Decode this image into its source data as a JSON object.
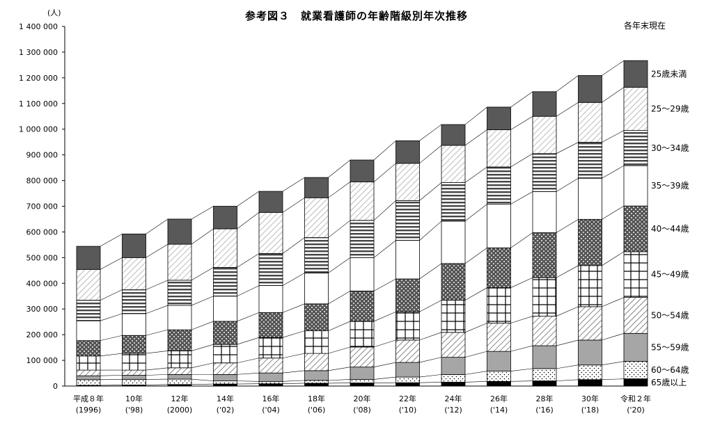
{
  "chart_data": {
    "type": "bar",
    "stacked": true,
    "title": "参考図３　就業看護師の年齢階級別年次推移",
    "note": "各年末現在",
    "ylabel": "(人)",
    "ylim": [
      0,
      1400000
    ],
    "yticks": [
      "0",
      "100 000",
      "200 000",
      "300 000",
      "400 000",
      "500 000",
      "600 000",
      "700 000",
      "800 000",
      "900 000",
      "1 000 000",
      "1 100 000",
      "1 200 000",
      "1 300 000",
      "1 400 000"
    ],
    "categories": [
      [
        "平成８年",
        "(1996)"
      ],
      [
        "10年",
        "('98)"
      ],
      [
        "12年",
        "(2000)"
      ],
      [
        "14年",
        "('02)"
      ],
      [
        "16年",
        "('04)"
      ],
      [
        "18年",
        "('06)"
      ],
      [
        "20年",
        "('08)"
      ],
      [
        "22年",
        "('10)"
      ],
      [
        "24年",
        "('12)"
      ],
      [
        "26年",
        "('14)"
      ],
      [
        "28年",
        "('16)"
      ],
      [
        "30年",
        "('18)"
      ],
      [
        "令和２年",
        "('20)"
      ]
    ],
    "legend_placement": "right",
    "series": [
      {
        "name": "65歳以上",
        "pattern": "solid-black",
        "values": [
          3000,
          4000,
          6000,
          8000,
          9000,
          11000,
          12000,
          13000,
          15000,
          18000,
          20000,
          25000,
          28000
        ]
      },
      {
        "name": "60～64歳",
        "pattern": "dots",
        "values": [
          22000,
          22000,
          21000,
          12000,
          9000,
          11000,
          14000,
          22000,
          30000,
          40000,
          48000,
          57000,
          68000
        ]
      },
      {
        "name": "55～59歳",
        "pattern": "gray",
        "values": [
          15000,
          16000,
          18000,
          25000,
          33000,
          38000,
          48000,
          57000,
          67000,
          77000,
          89000,
          97000,
          109000
        ]
      },
      {
        "name": "50～54歳",
        "pattern": "diagonal",
        "values": [
          22000,
          20000,
          26000,
          45000,
          58000,
          67000,
          78000,
          87000,
          97000,
          110000,
          115000,
          130000,
          140000
        ]
      },
      {
        "name": "45～49歳",
        "pattern": "grid",
        "values": [
          55000,
          65000,
          66000,
          72000,
          80000,
          88000,
          100000,
          110000,
          125000,
          138000,
          150000,
          160000,
          178000
        ]
      },
      {
        "name": "40～44歳",
        "pattern": "crosshatch",
        "values": [
          60000,
          70000,
          82000,
          90000,
          97000,
          105000,
          118000,
          128000,
          143000,
          155000,
          175000,
          180000,
          178000
        ]
      },
      {
        "name": "35～39歳",
        "pattern": "white",
        "values": [
          77000,
          85000,
          95000,
          98000,
          105000,
          120000,
          130000,
          150000,
          165000,
          170000,
          160000,
          160000,
          157000
        ]
      },
      {
        "name": "30～34歳",
        "pattern": "horizontal",
        "values": [
          80000,
          93000,
          98000,
          112000,
          125000,
          138000,
          145000,
          155000,
          150000,
          145000,
          148000,
          140000,
          137000
        ]
      },
      {
        "name": "25～29歳",
        "pattern": "diagonal-light",
        "values": [
          120000,
          125000,
          140000,
          150000,
          160000,
          155000,
          150000,
          145000,
          145000,
          145000,
          145000,
          155000,
          168000
        ]
      },
      {
        "name": "25歳未満",
        "pattern": "dark-gray",
        "values": [
          90000,
          92000,
          98000,
          88000,
          82000,
          79000,
          85000,
          88000,
          81000,
          88000,
          96000,
          105000,
          104000
        ]
      }
    ]
  }
}
